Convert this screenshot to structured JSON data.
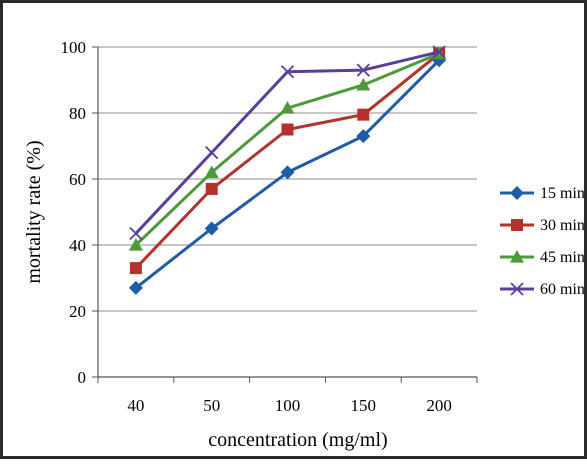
{
  "chart_data": {
    "type": "line",
    "title": "",
    "xlabel": "concentration (mg/ml)",
    "ylabel": "mortality rate (%)",
    "categories": [
      "40",
      "50",
      "100",
      "150",
      "200"
    ],
    "ylim": [
      0,
      100
    ],
    "yticks": [
      "0",
      "20",
      "40",
      "60",
      "80",
      "100"
    ],
    "grid": "horizontal",
    "legend_position": "right",
    "series": [
      {
        "name": "15 min",
        "color": "#1F5CA8",
        "marker": "diamond",
        "values": [
          27,
          45,
          62,
          73,
          96
        ]
      },
      {
        "name": "30 min",
        "color": "#B5312B",
        "marker": "square",
        "values": [
          33,
          57,
          75,
          79.5,
          98
        ]
      },
      {
        "name": "45 min",
        "color": "#4E9A3A",
        "marker": "triangle",
        "values": [
          40,
          62,
          81.5,
          88.5,
          98
        ]
      },
      {
        "name": "60 min",
        "color": "#5B3E99",
        "marker": "x",
        "values": [
          43.5,
          68,
          92.5,
          93,
          98.5
        ]
      }
    ]
  }
}
